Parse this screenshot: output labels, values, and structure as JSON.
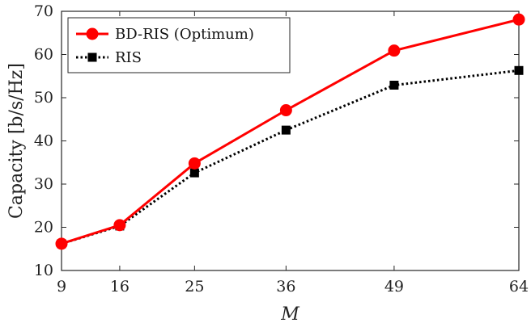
{
  "chart_data": {
    "type": "line",
    "xlabel": "M",
    "ylabel": "Capacity [b/s/Hz]",
    "x": [
      9,
      16,
      25,
      36,
      49,
      64
    ],
    "xticks": [
      "9",
      "16",
      "25",
      "36",
      "49",
      "64"
    ],
    "xlim": [
      9,
      64
    ],
    "ylim": [
      10,
      70
    ],
    "yticks": [
      10,
      20,
      30,
      40,
      50,
      60,
      70
    ],
    "grid": false,
    "legend": "top-left",
    "series": [
      {
        "name": "BD-RIS (Optimum)",
        "values": [
          16.2,
          20.5,
          34.8,
          47.1,
          60.9,
          68.1
        ],
        "color": "#ff0000",
        "style": "solid",
        "marker": "circle"
      },
      {
        "name": "RIS",
        "values": [
          16.2,
          20.3,
          32.6,
          42.5,
          52.9,
          56.3
        ],
        "color": "#000000",
        "style": "dotted",
        "marker": "square"
      }
    ]
  }
}
